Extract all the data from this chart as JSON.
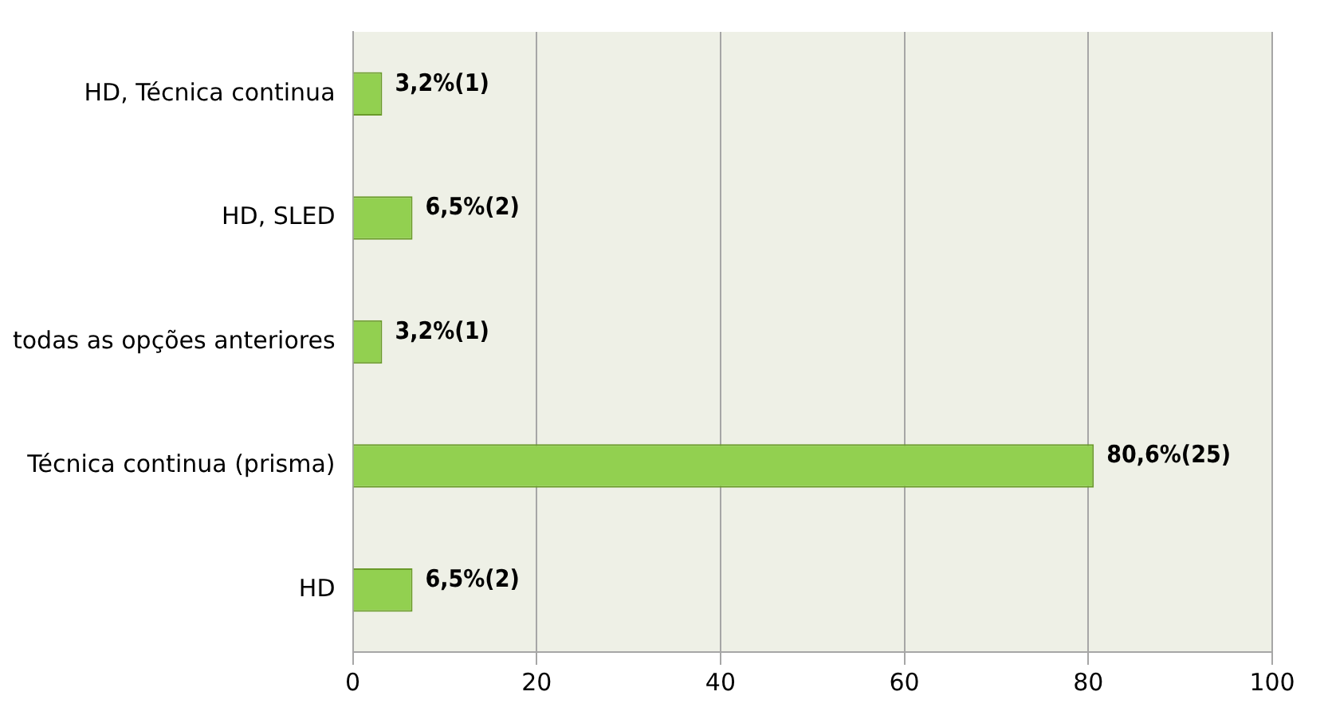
{
  "chart_data": {
    "type": "bar",
    "orientation": "horizontal",
    "categories": [
      "HD, Técnica continua",
      "HD, SLED",
      "todas as opções anteriores",
      "Técnica continua (prisma)",
      "HD"
    ],
    "values": [
      3.2,
      6.5,
      3.2,
      80.6,
      6.5
    ],
    "value_labels": [
      "3,2%(1)",
      "6,5%(2)",
      "3,2%(1)",
      "80,6%(25)",
      "6,5%(2)"
    ],
    "color": "#92d050",
    "xlim": [
      0,
      100
    ],
    "xticks": [
      0,
      20,
      40,
      60,
      80,
      100
    ],
    "grid": "x",
    "legend": false
  }
}
